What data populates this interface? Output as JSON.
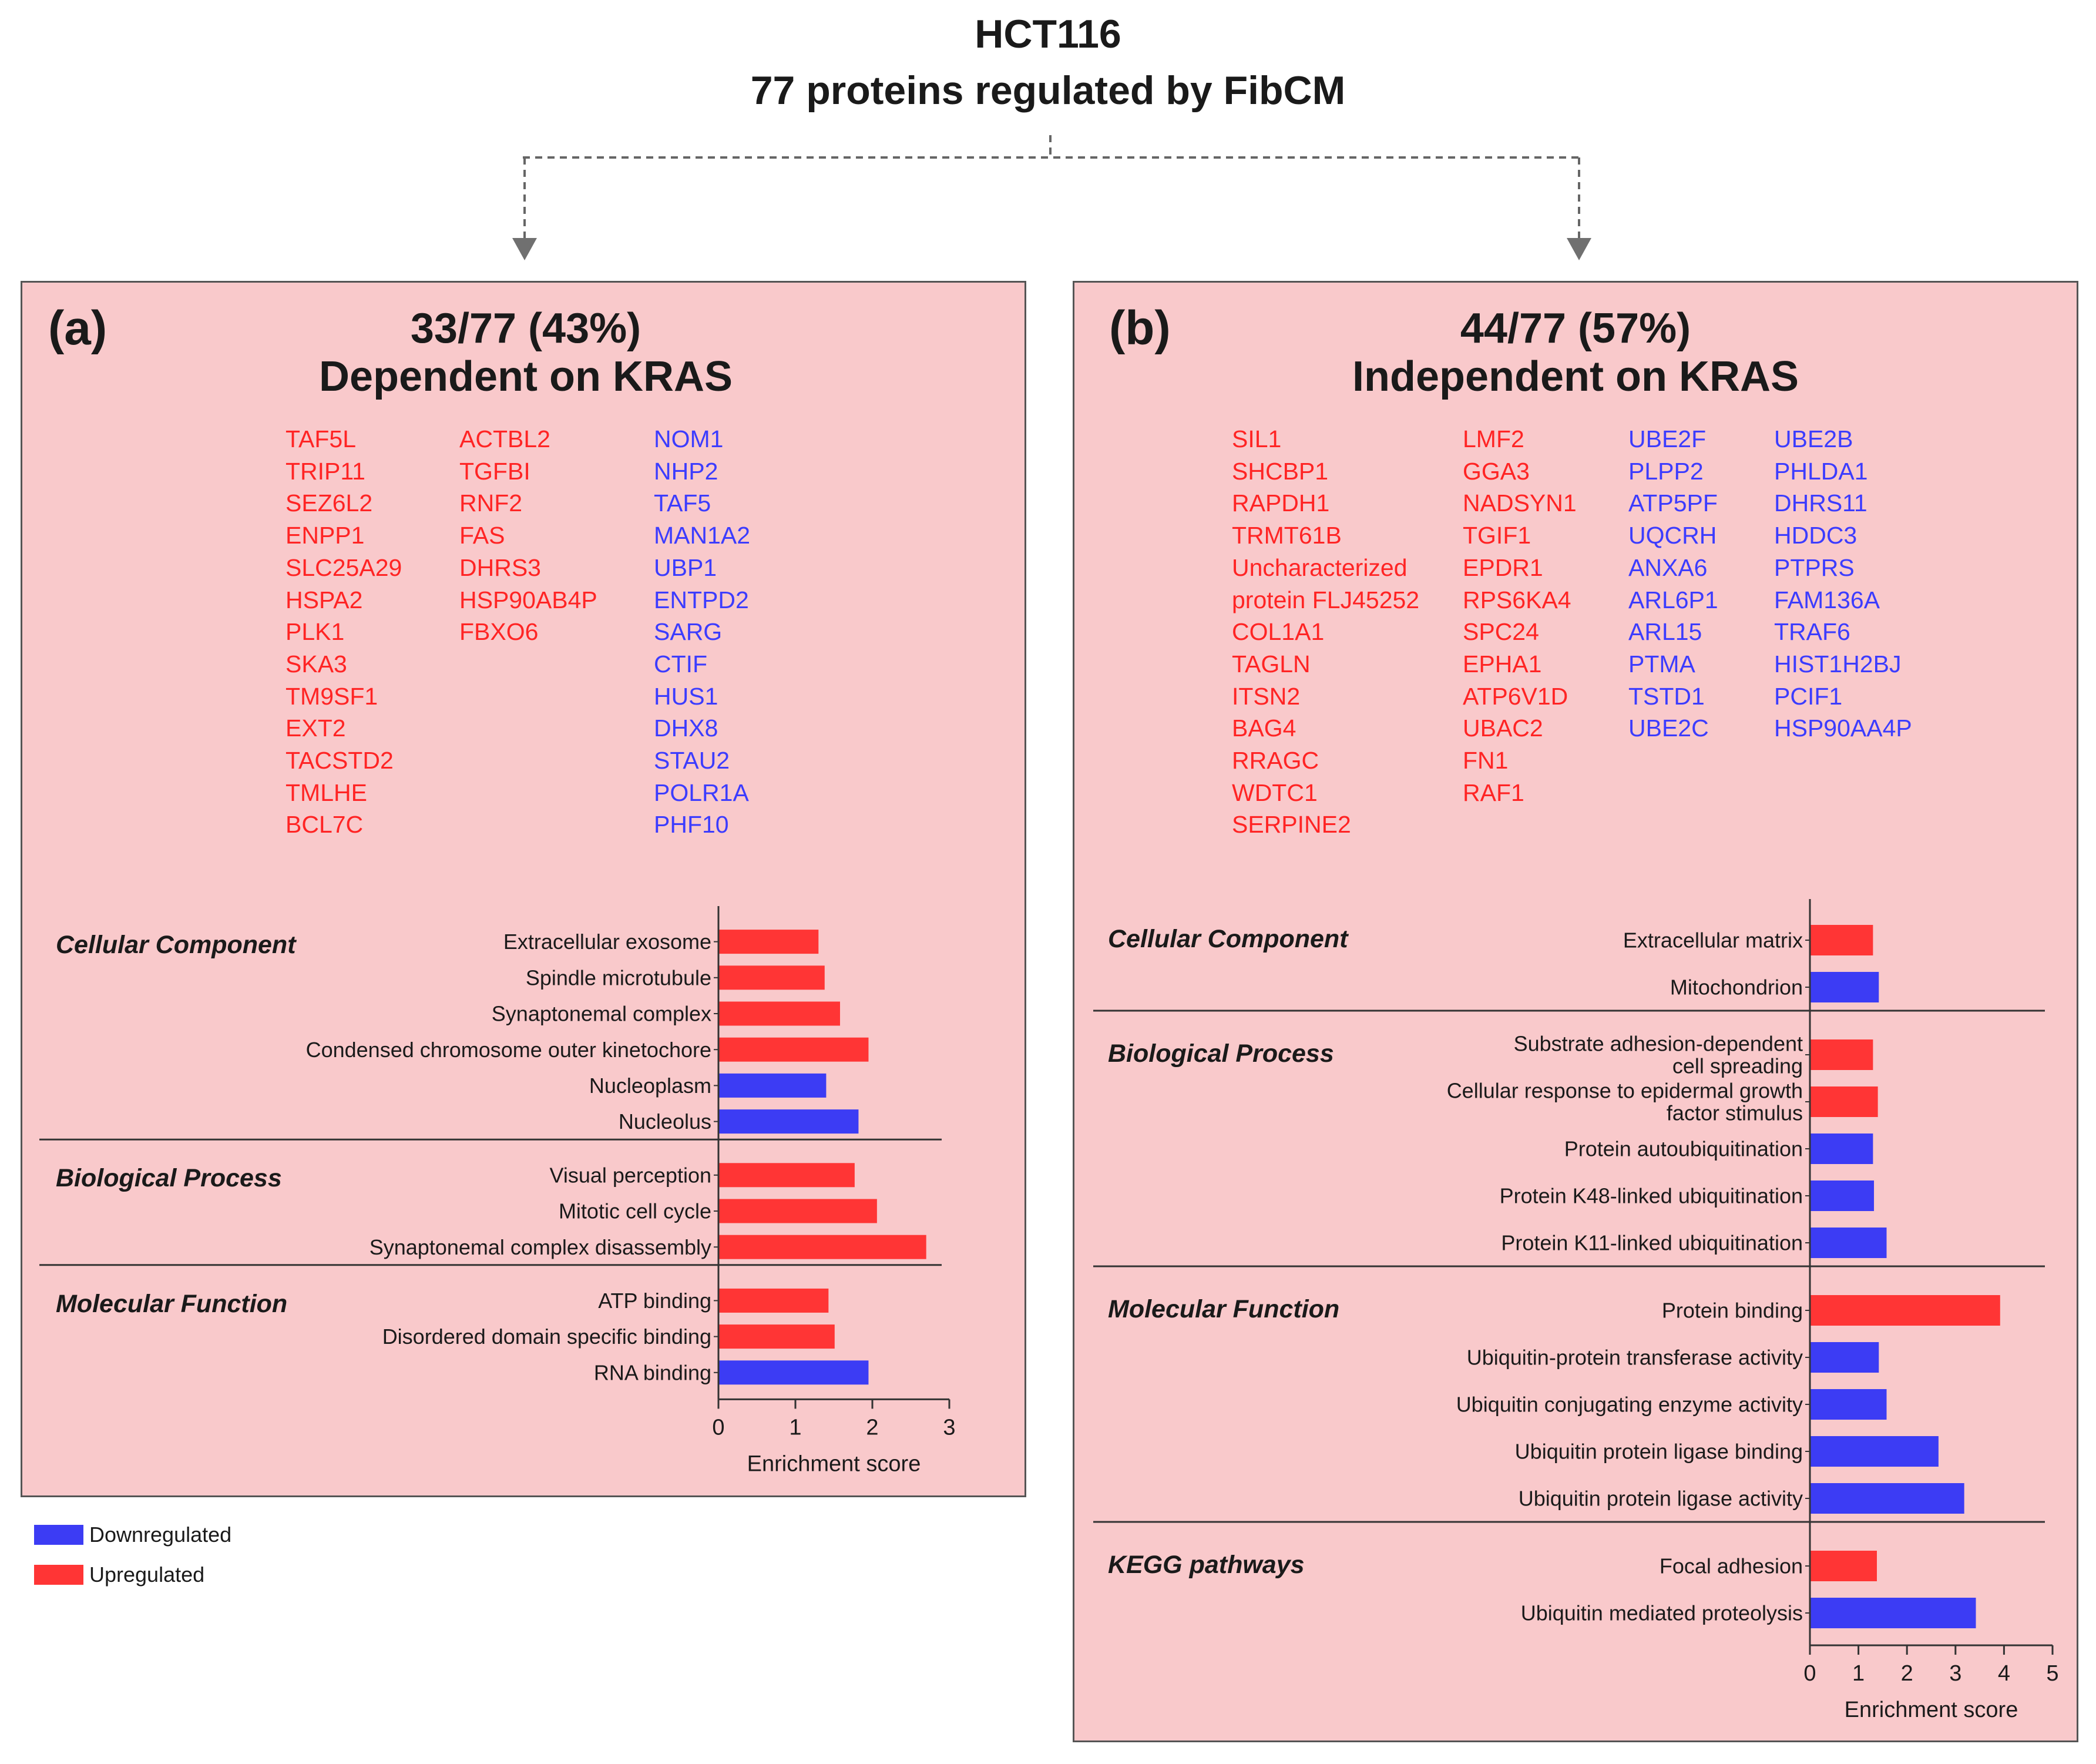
{
  "title": {
    "line1": "HCT116",
    "line2": "77 proteins regulated by FibCM"
  },
  "colors": {
    "up": "#ff3535",
    "down": "#3c3cf4",
    "panel_bg": "#f9c9cb",
    "gene_up_text": "#ff2424",
    "gene_down_text": "#3c3cff"
  },
  "legend": {
    "down_label": "Downregulated",
    "up_label": "Upregulated"
  },
  "panel_a": {
    "label": "(a)",
    "fraction": "33/77 (43%)",
    "heading": "Dependent on KRAS",
    "genes_up_col1": [
      "TAF5L",
      "TRIP11",
      "SEZ6L2",
      "ENPP1",
      "SLC25A29",
      "HSPA2",
      "PLK1",
      "SKA3",
      "TM9SF1",
      "EXT2",
      "TACSTD2",
      "TMLHE",
      "BCL7C"
    ],
    "genes_up_col2": [
      "ACTBL2",
      "TGFBI",
      "RNF2",
      "FAS",
      "DHRS3",
      "HSP90AB4P",
      "FBXO6"
    ],
    "genes_down_col3": [
      "NOM1",
      "NHP2",
      "TAF5",
      "MAN1A2",
      "UBP1",
      "ENTPD2",
      "SARG",
      "CTIF",
      "HUS1",
      "DHX8",
      "STAU2",
      "POLR1A",
      "PHF10"
    ]
  },
  "panel_b": {
    "label": "(b)",
    "fraction": "44/77 (57%)",
    "heading": "Independent on KRAS",
    "genes_up_col1": [
      "SIL1",
      "SHCBP1",
      "RAPDH1",
      "TRMT61B",
      "Uncharacterized",
      "protein FLJ45252",
      "COL1A1",
      "TAGLN",
      "ITSN2",
      "BAG4",
      "RRAGC",
      "WDTC1",
      "SERPINE2"
    ],
    "genes_up_col2": [
      "LMF2",
      "GGA3",
      "NADSYN1",
      "TGIF1",
      "EPDR1",
      "RPS6KA4",
      "SPC24",
      "EPHA1",
      "ATP6V1D",
      "UBAC2",
      "FN1",
      "RAF1"
    ],
    "genes_down_col3": [
      "UBE2F",
      "PLPP2",
      "ATP5PF",
      "UQCRH",
      "ANXA6",
      "ARL6P1",
      "ARL15",
      "PTMA",
      "TSTD1",
      "UBE2C"
    ],
    "genes_down_col4": [
      "UBE2B",
      "PHLDA1",
      "DHRS11",
      "HDDC3",
      "PTPRS",
      "FAM136A",
      "TRAF6",
      "HIST1H2BJ",
      "PCIF1",
      "HSP90AA4P"
    ]
  },
  "chart_data": [
    {
      "type": "bar",
      "orientation": "horizontal",
      "panel": "a",
      "xlabel": "Enrichment score",
      "xlim": [
        0,
        3
      ],
      "xticks": [
        0,
        1,
        2,
        3
      ],
      "groups": [
        {
          "name": "Cellular Component",
          "bars": [
            {
              "label": "Extracellular exosome",
              "value": 1.3,
              "direction": "up"
            },
            {
              "label": "Spindle microtubule",
              "value": 1.38,
              "direction": "up"
            },
            {
              "label": "Synaptonemal complex",
              "value": 1.58,
              "direction": "up"
            },
            {
              "label": "Condensed chromosome outer kinetochore",
              "value": 1.95,
              "direction": "up"
            },
            {
              "label": "Nucleoplasm",
              "value": 1.4,
              "direction": "down"
            },
            {
              "label": "Nucleolus",
              "value": 1.82,
              "direction": "down"
            }
          ]
        },
        {
          "name": "Biological Process",
          "bars": [
            {
              "label": "Visual perception",
              "value": 1.77,
              "direction": "up"
            },
            {
              "label": "Mitotic cell cycle",
              "value": 2.06,
              "direction": "up"
            },
            {
              "label": "Synaptonemal complex disassembly",
              "value": 2.7,
              "direction": "up"
            }
          ]
        },
        {
          "name": "Molecular Function",
          "bars": [
            {
              "label": "ATP binding",
              "value": 1.43,
              "direction": "up"
            },
            {
              "label": "Disordered domain specific binding",
              "value": 1.51,
              "direction": "up"
            },
            {
              "label": "RNA binding",
              "value": 1.95,
              "direction": "down"
            }
          ]
        }
      ]
    },
    {
      "type": "bar",
      "orientation": "horizontal",
      "panel": "b",
      "xlabel": "Enrichment score",
      "xlim": [
        0,
        5
      ],
      "xticks": [
        0,
        1,
        2,
        3,
        4,
        5
      ],
      "groups": [
        {
          "name": "Cellular Component",
          "bars": [
            {
              "label": "Extracellular matrix",
              "value": 1.3,
              "direction": "up"
            },
            {
              "label": "Mitochondrion",
              "value": 1.42,
              "direction": "down"
            }
          ]
        },
        {
          "name": "Biological Process",
          "bars": [
            {
              "label": "Substrate adhesion-dependent cell spreading",
              "label_lines": [
                "Substrate adhesion-dependent",
                "cell spreading"
              ],
              "value": 1.3,
              "direction": "up"
            },
            {
              "label": "Cellular response to epidermal growth factor stimulus",
              "label_lines": [
                "Cellular response to epidermal growth",
                "factor stimulus"
              ],
              "value": 1.4,
              "direction": "up"
            },
            {
              "label": "Protein autoubiquitination",
              "value": 1.3,
              "direction": "down"
            },
            {
              "label": "Protein K48-linked ubiquitination",
              "value": 1.32,
              "direction": "down"
            },
            {
              "label": "Protein K11-linked ubiquitination",
              "value": 1.58,
              "direction": "down"
            }
          ]
        },
        {
          "name": "Molecular Function",
          "bars": [
            {
              "label": "Protein binding",
              "value": 3.92,
              "direction": "up"
            },
            {
              "label": "Ubiquitin-protein transferase activity",
              "value": 1.42,
              "direction": "down"
            },
            {
              "label": "Ubiquitin conjugating enzyme activity",
              "value": 1.58,
              "direction": "down"
            },
            {
              "label": "Ubiquitin protein ligase binding",
              "value": 2.65,
              "direction": "down"
            },
            {
              "label": "Ubiquitin protein ligase activity",
              "value": 3.18,
              "direction": "down"
            }
          ]
        },
        {
          "name": "KEGG pathways",
          "bars": [
            {
              "label": "Focal adhesion",
              "value": 1.38,
              "direction": "up"
            },
            {
              "label": "Ubiquitin mediated proteolysis",
              "value": 3.42,
              "direction": "down"
            }
          ]
        }
      ]
    }
  ]
}
